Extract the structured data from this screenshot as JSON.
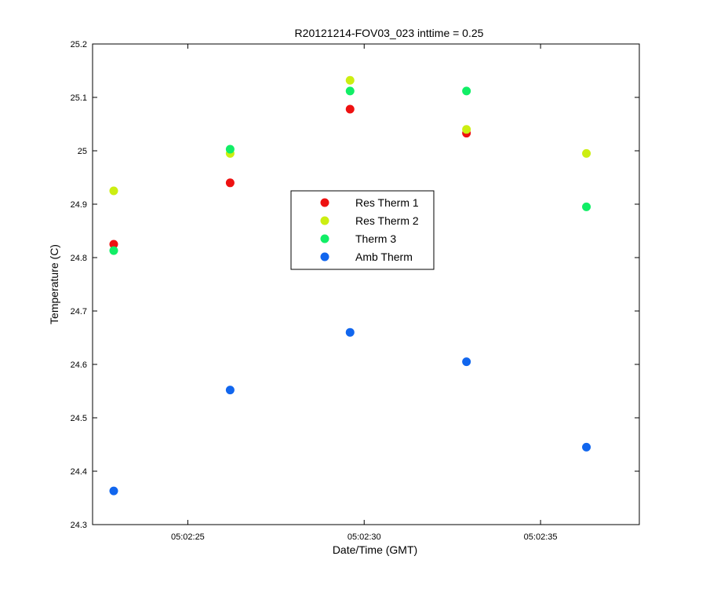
{
  "chart_data": {
    "type": "scatter",
    "title": "R20121214-FOV03_023 inttime = 0.25",
    "xlabel": "Date/Time (GMT)",
    "ylabel": "Temperature (C)",
    "xlim": [
      "05:02:22.3",
      "05:02:37.8"
    ],
    "ylim": [
      24.3,
      25.2
    ],
    "x_ticks": [
      "05:02:25",
      "05:02:30",
      "05:02:35"
    ],
    "y_ticks": [
      "24.3",
      "24.4",
      "24.5",
      "24.6",
      "24.7",
      "24.8",
      "24.9",
      "25",
      "25.1",
      "25.2"
    ],
    "grid": false,
    "legend_position": "center",
    "x": [
      "05:02:22.9",
      "05:02:26.2",
      "05:02:29.6",
      "05:02:32.9",
      "05:02:36.3"
    ],
    "series": [
      {
        "name": "Res Therm 1",
        "color": "#ee1111",
        "values": [
          24.825,
          24.94,
          25.078,
          25.033,
          null
        ]
      },
      {
        "name": "Res Therm 2",
        "color": "#ccee11",
        "values": [
          24.925,
          24.995,
          25.132,
          25.04,
          24.995
        ]
      },
      {
        "name": "Therm 3",
        "color": "#11ee66",
        "values": [
          24.813,
          25.003,
          25.112,
          25.112,
          24.895
        ]
      },
      {
        "name": "Amb Therm",
        "color": "#1166ee",
        "values": [
          24.363,
          24.552,
          24.66,
          24.605,
          24.445
        ]
      }
    ]
  }
}
